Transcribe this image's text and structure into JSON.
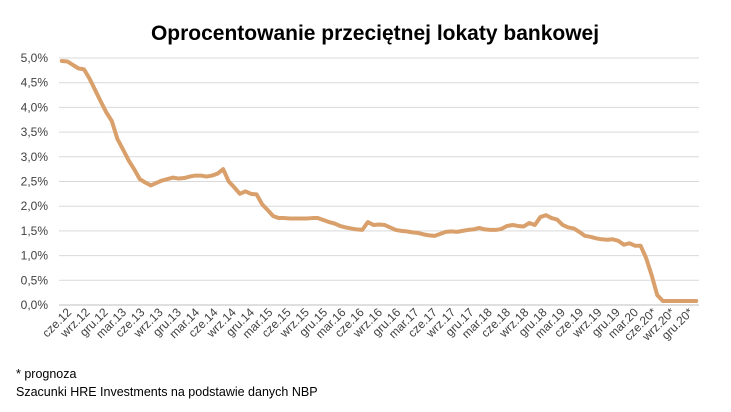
{
  "chart_data": {
    "type": "line",
    "title": "Oprocentowanie przeciętnej lokaty bankowej",
    "xlabel": "",
    "ylabel": "",
    "ylim": [
      0,
      5
    ],
    "yticks": [
      "0,0%",
      "0,5%",
      "1,0%",
      "1,5%",
      "2,0%",
      "2,5%",
      "3,0%",
      "3,5%",
      "4,0%",
      "4,5%",
      "5,0%"
    ],
    "xticks": [
      "cze.12",
      "wrz.12",
      "gru.12",
      "mar.13",
      "cze.13",
      "wrz.13",
      "gru.13",
      "mar.14",
      "cze.14",
      "wrz.14",
      "gru.14",
      "mar.15",
      "cze.15",
      "wrz.15",
      "gru.15",
      "mar.16",
      "cze.16",
      "wrz.16",
      "gru.16",
      "mar.17",
      "cze.17",
      "wrz.17",
      "gru.17",
      "mar.18",
      "cze.18",
      "wrz.18",
      "gru.18",
      "mar.19",
      "cze.19",
      "wrz.19",
      "gru.19",
      "mar.20",
      "cze.20*",
      "wrz.20*",
      "gru.20*"
    ],
    "grid": true,
    "legend": "none",
    "line_color": "#d9a06c",
    "series": [
      {
        "values": [
          4.94,
          4.93,
          4.86,
          4.79,
          4.77,
          4.58,
          4.35,
          4.12,
          3.9,
          3.72,
          3.36,
          3.15,
          2.93,
          2.75,
          2.55,
          2.48,
          2.42,
          2.47,
          2.52,
          2.55,
          2.58,
          2.56,
          2.57,
          2.6,
          2.62,
          2.62,
          2.6,
          2.62,
          2.66,
          2.75,
          2.5,
          2.38,
          2.25,
          2.3,
          2.25,
          2.24,
          2.04,
          1.92,
          1.8,
          1.76,
          1.76,
          1.75,
          1.75,
          1.75,
          1.75,
          1.76,
          1.76,
          1.72,
          1.68,
          1.65,
          1.6,
          1.57,
          1.55,
          1.53,
          1.52,
          1.68,
          1.62,
          1.63,
          1.62,
          1.57,
          1.52,
          1.5,
          1.49,
          1.47,
          1.46,
          1.43,
          1.41,
          1.4,
          1.44,
          1.48,
          1.49,
          1.48,
          1.5,
          1.52,
          1.53,
          1.56,
          1.53,
          1.52,
          1.52,
          1.54,
          1.6,
          1.62,
          1.6,
          1.59,
          1.66,
          1.62,
          1.78,
          1.82,
          1.76,
          1.73,
          1.62,
          1.57,
          1.55,
          1.48,
          1.4,
          1.38,
          1.35,
          1.33,
          1.32,
          1.33,
          1.3,
          1.22,
          1.25,
          1.2,
          1.2,
          0.95,
          0.6,
          0.2,
          0.08,
          0.08,
          0.08,
          0.08,
          0.08,
          0.08,
          0.08
        ]
      }
    ]
  },
  "footnotes": {
    "line1": "* prognoza",
    "line2": "Szacunki HRE Investments na podstawie danych NBP"
  }
}
